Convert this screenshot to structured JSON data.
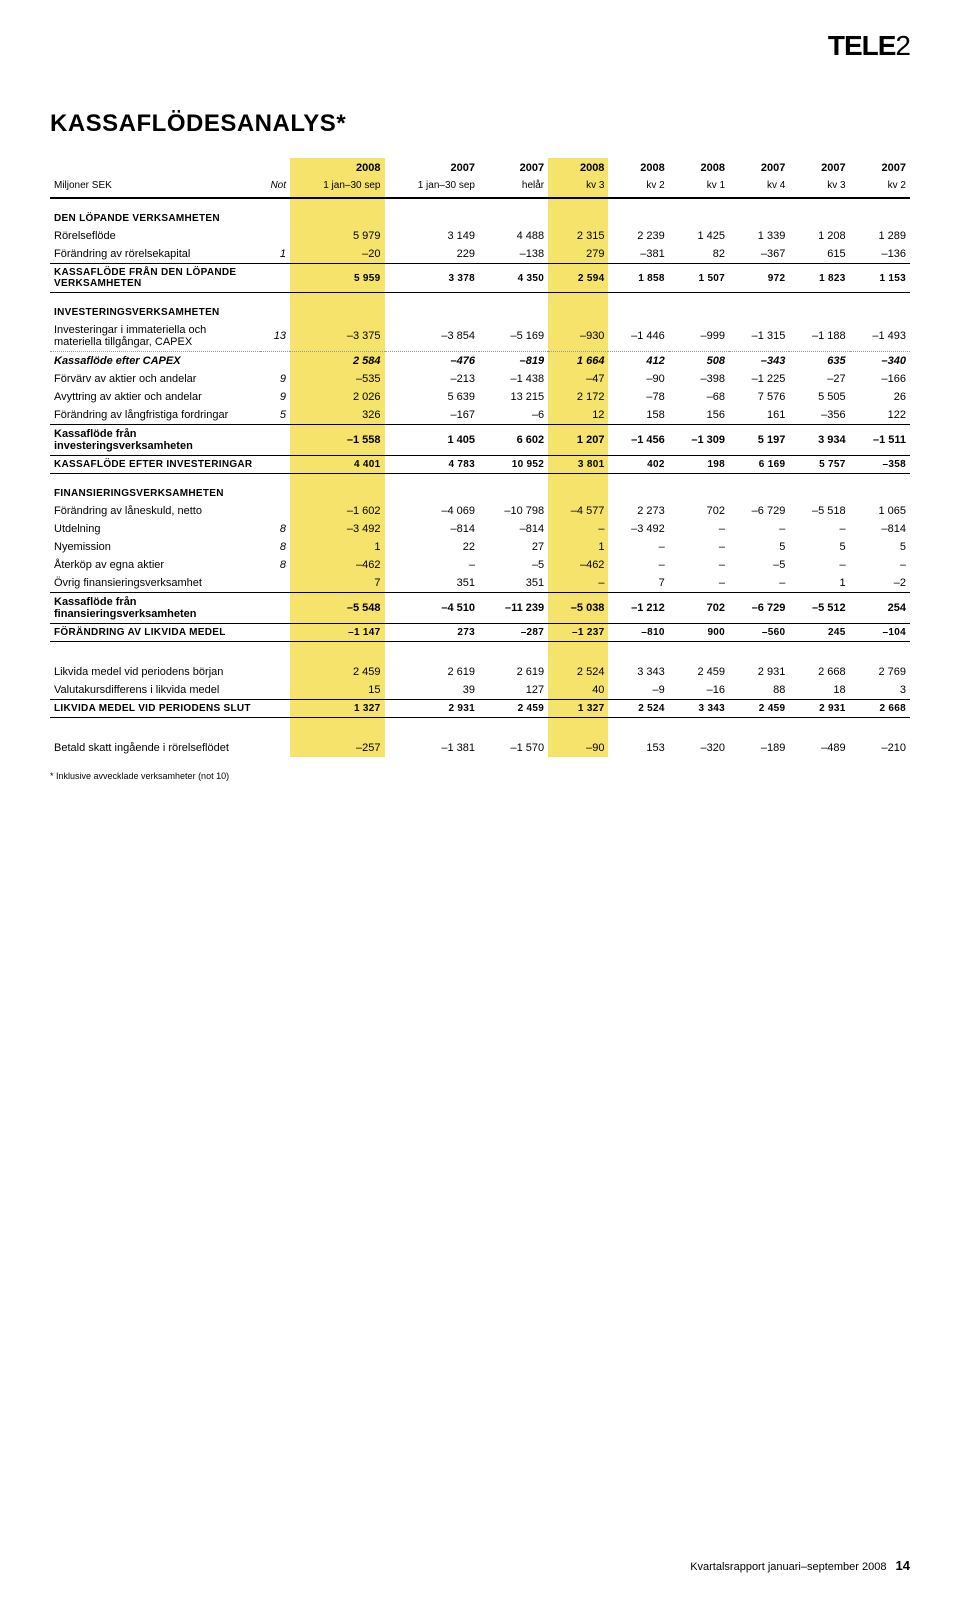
{
  "logo": {
    "part1": "TELE",
    "part2": "2"
  },
  "title": "KASSAFLÖDESANALYS*",
  "header_years": [
    "2008",
    "2007",
    "2007",
    "2008",
    "2008",
    "2008",
    "2007",
    "2007",
    "2007"
  ],
  "header_periods_unit": "Miljoner SEK",
  "header_not": "Not",
  "header_periods": [
    "1 jan–30 sep",
    "1 jan–30 sep",
    "helår",
    "kv 3",
    "kv 2",
    "kv 1",
    "kv 4",
    "kv 3",
    "kv 2"
  ],
  "hl_cols": [
    2,
    5
  ],
  "sections": [
    {
      "header": "DEN LÖPANDE VERKSAMHETEN",
      "rows": [
        {
          "label": "Rörelseflöde",
          "not": "",
          "cells": [
            "5 979",
            "3 149",
            "4 488",
            "2 315",
            "2 239",
            "1 425",
            "1 339",
            "1 208",
            "1 289"
          ]
        },
        {
          "label": "Förändring av rörelsekapital",
          "not": "1",
          "cells": [
            "–20",
            "229",
            "–138",
            "279",
            "–381",
            "82",
            "–367",
            "615",
            "–136"
          ]
        }
      ],
      "total": {
        "label": "KASSAFLÖDE FRÅN DEN LÖPANDE VERKSAMHETEN",
        "cells": [
          "5 959",
          "3 378",
          "4 350",
          "2 594",
          "1 858",
          "1 507",
          "972",
          "1 823",
          "1 153"
        ],
        "style": "total"
      }
    },
    {
      "header": "INVESTERINGSVERKSAMHETEN",
      "rows": [
        {
          "label": "Investeringar i immateriella och materiella tillgångar, CAPEX",
          "not": "13",
          "cells": [
            "–3 375",
            "–3 854",
            "–5 169",
            "–930",
            "–1 446",
            "–999",
            "–1 315",
            "–1 188",
            "–1 493"
          ],
          "dotted": true
        }
      ],
      "sub": {
        "label": "Kassaflöde efter CAPEX",
        "cells": [
          "2 584",
          "–476",
          "–819",
          "1 664",
          "412",
          "508",
          "–343",
          "635",
          "–340"
        ],
        "style": "subtotal-italic"
      },
      "rows2": [
        {
          "label": "Förvärv av aktier och andelar",
          "not": "9",
          "cells": [
            "–535",
            "–213",
            "–1 438",
            "–47",
            "–90",
            "–398",
            "–1 225",
            "–27",
            "–166"
          ]
        },
        {
          "label": "Avyttring av aktier och andelar",
          "not": "9",
          "cells": [
            "2 026",
            "5 639",
            "13 215",
            "2 172",
            "–78",
            "–68",
            "7 576",
            "5 505",
            "26"
          ]
        },
        {
          "label": "Förändring av långfristiga fordringar",
          "not": "5",
          "cells": [
            "326",
            "–167",
            "–6",
            "12",
            "158",
            "156",
            "161",
            "–356",
            "122"
          ]
        }
      ],
      "sub2": {
        "label": "Kassaflöde från investeringsverksamheten",
        "cells": [
          "–1 558",
          "1 405",
          "6 602",
          "1 207",
          "–1 456",
          "–1 309",
          "5 197",
          "3 934",
          "–1 511"
        ],
        "style": "subtotal"
      },
      "total": {
        "label": "KASSAFLÖDE EFTER INVESTERINGAR",
        "cells": [
          "4 401",
          "4 783",
          "10 952",
          "3 801",
          "402",
          "198",
          "6 169",
          "5 757",
          "–358"
        ],
        "style": "total"
      }
    },
    {
      "header": "FINANSIERINGSVERKSAMHETEN",
      "rows": [
        {
          "label": "Förändring av låneskuld, netto",
          "not": "",
          "cells": [
            "–1 602",
            "–4 069",
            "–10 798",
            "–4 577",
            "2 273",
            "702",
            "–6 729",
            "–5 518",
            "1 065"
          ]
        },
        {
          "label": "Utdelning",
          "not": "8",
          "cells": [
            "–3 492",
            "–814",
            "–814",
            "–",
            "–3 492",
            "–",
            "–",
            "–",
            "–814"
          ]
        },
        {
          "label": "Nyemission",
          "not": "8",
          "cells": [
            "1",
            "22",
            "27",
            "1",
            "–",
            "–",
            "5",
            "5",
            "5"
          ]
        },
        {
          "label": "Återköp av egna aktier",
          "not": "8",
          "cells": [
            "–462",
            "–",
            "–5",
            "–462",
            "–",
            "–",
            "–5",
            "–",
            "–"
          ]
        },
        {
          "label": "Övrig finansieringsverksamhet",
          "not": "",
          "cells": [
            "7",
            "351",
            "351",
            "–",
            "7",
            "–",
            "–",
            "1",
            "–2"
          ]
        }
      ],
      "sub": {
        "label": "Kassaflöde från finansieringsverksamheten",
        "cells": [
          "–5 548",
          "–4 510",
          "–11 239",
          "–5 038",
          "–1 212",
          "702",
          "–6 729",
          "–5 512",
          "254"
        ],
        "style": "subtotal"
      },
      "total": {
        "label": "FÖRÄNDRING AV LIKVIDA MEDEL",
        "cells": [
          "–1 147",
          "273",
          "–287",
          "–1 237",
          "–810",
          "900",
          "–560",
          "245",
          "–104"
        ],
        "style": "total"
      }
    },
    {
      "header": "",
      "rows": [
        {
          "label": "Likvida medel vid periodens början",
          "not": "",
          "cells": [
            "2 459",
            "2 619",
            "2 619",
            "2 524",
            "3 343",
            "2 459",
            "2 931",
            "2 668",
            "2 769"
          ]
        },
        {
          "label": "Valutakursdifferens i likvida medel",
          "not": "",
          "cells": [
            "15",
            "39",
            "127",
            "40",
            "–9",
            "–16",
            "88",
            "18",
            "3"
          ]
        }
      ],
      "total": {
        "label": "LIKVIDA MEDEL VID PERIODENS SLUT",
        "cells": [
          "1 327",
          "2 931",
          "2 459",
          "1 327",
          "2 524",
          "3 343",
          "2 459",
          "2 931",
          "2 668"
        ],
        "style": "total"
      }
    },
    {
      "header": "",
      "rows": [
        {
          "label": "Betald skatt ingående i rörelseflödet",
          "not": "",
          "cells": [
            "–257",
            "–1 381",
            "–1 570",
            "–90",
            "153",
            "–320",
            "–189",
            "–489",
            "–210"
          ]
        }
      ]
    }
  ],
  "footnote": "* Inklusive avvecklade verksamheter (not 10)",
  "footer_text": "Kvartalsrapport januari–september 2008",
  "footer_page": "14"
}
